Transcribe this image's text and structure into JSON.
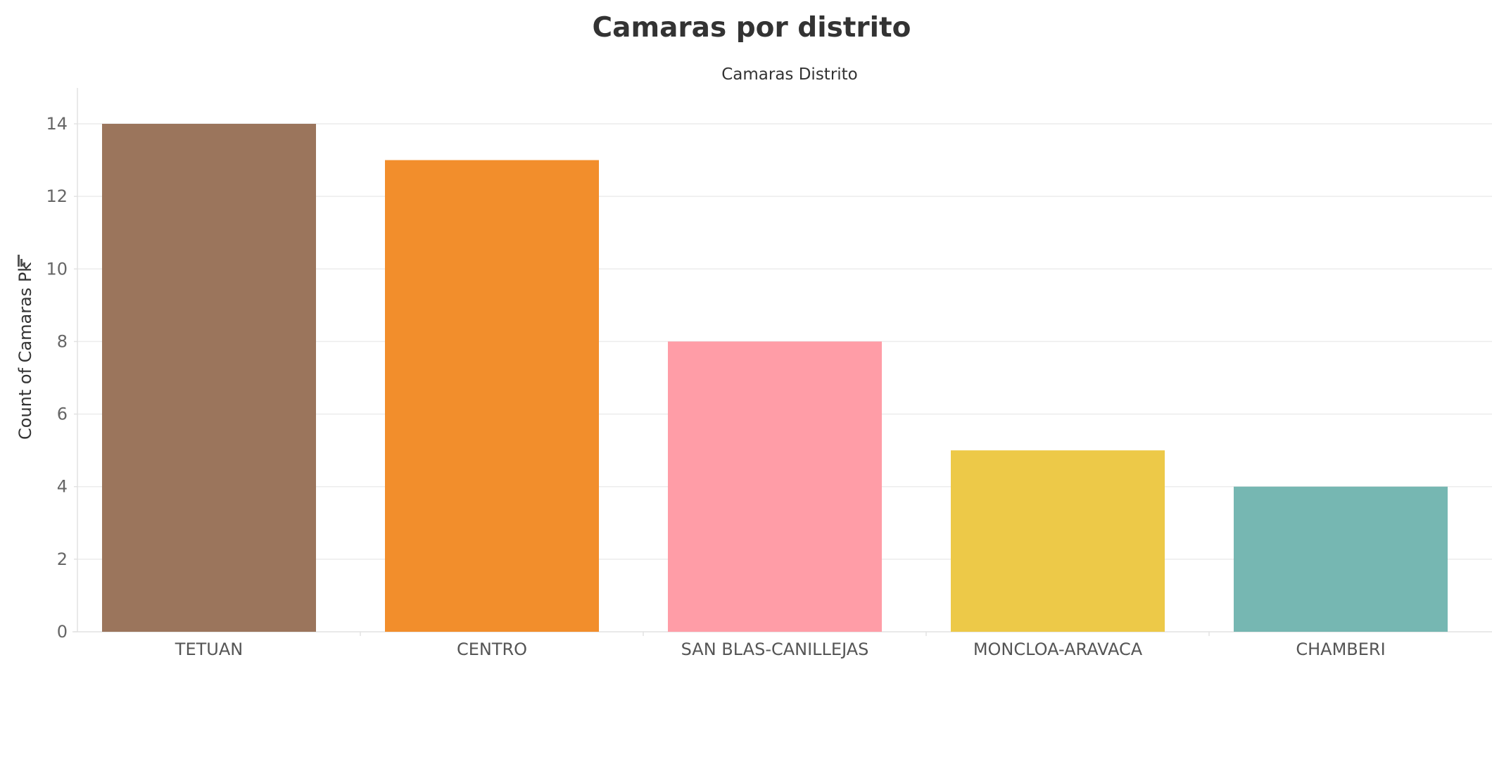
{
  "chart_data": {
    "type": "bar",
    "title": "Camaras por distrito",
    "subtitle": "Camaras Distrito",
    "xlabel": "",
    "ylabel": "Count of Camaras Pk",
    "categories": [
      "TETUAN",
      "CENTRO",
      "SAN BLAS-CANILLEJAS",
      "MONCLOA-ARAVACA",
      "CHAMBERI"
    ],
    "values": [
      14,
      13,
      8,
      5,
      4
    ],
    "colors": [
      "#9b755c",
      "#f28e2c",
      "#ff9da7",
      "#edc948",
      "#76b7b2"
    ],
    "ylim": [
      0,
      14
    ],
    "yticks": [
      "0",
      "2",
      "4",
      "6",
      "8",
      "10",
      "12",
      "14"
    ],
    "grid": true,
    "legend": "none",
    "sort_icon": "sort-descending-icon"
  }
}
